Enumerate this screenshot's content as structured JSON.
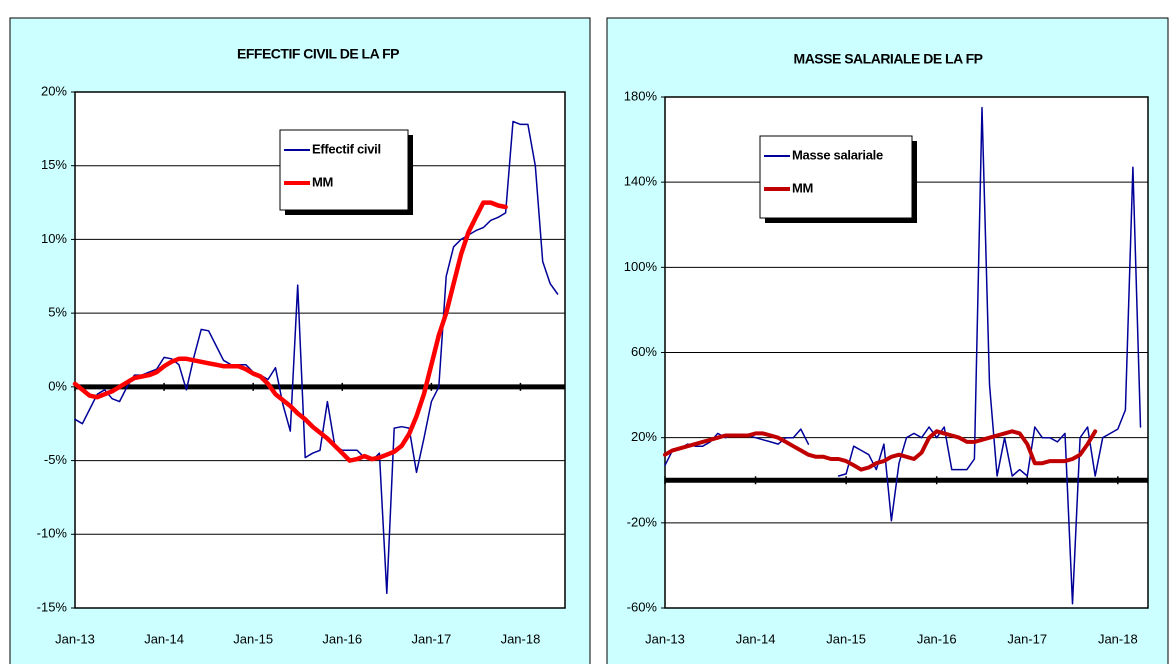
{
  "chart_data": [
    {
      "type": "line",
      "title": "EFFECTIF CIVIL DE LA FP",
      "categories": [
        "Jan-13",
        null,
        null,
        null,
        null,
        null,
        null,
        null,
        null,
        null,
        null,
        null,
        "Jan-14",
        null,
        null,
        null,
        null,
        null,
        null,
        null,
        null,
        null,
        null,
        null,
        "Jan-15",
        null,
        null,
        null,
        null,
        null,
        null,
        null,
        null,
        null,
        null,
        null,
        "Jan-16",
        null,
        null,
        null,
        null,
        null,
        null,
        null,
        null,
        null,
        null,
        null,
        "Jan-17",
        null,
        null,
        null,
        null,
        null,
        null,
        null,
        null,
        null,
        null,
        null,
        "Jan-18",
        null,
        null,
        null,
        null,
        null
      ],
      "series": [
        {
          "name": "Effectif civil",
          "color": "#000099",
          "values": [
            -2.2,
            -2.5,
            -1.5,
            -0.5,
            -0.2,
            -0.8,
            -1.0,
            0.0,
            0.8,
            0.8,
            1.0,
            1.2,
            2.0,
            1.9,
            1.5,
            -0.2,
            2.0,
            3.9,
            3.8,
            2.8,
            1.8,
            1.5,
            1.5,
            1.5,
            1.0,
            0.8,
            0.5,
            1.3,
            -1.2,
            -3.0,
            6.9,
            -4.8,
            -4.5,
            -4.3,
            -1.0,
            -4.0,
            -4.3,
            -4.3,
            -4.3,
            -4.8,
            -5.0,
            -4.5,
            -14.0,
            -2.8,
            -2.7,
            -2.8,
            -5.8,
            -3.5,
            -1.0,
            0.0,
            7.5,
            9.5,
            10.0,
            10.3,
            10.6,
            10.8,
            11.3,
            11.5,
            11.8,
            18.0,
            17.8,
            17.8,
            15.0,
            8.5,
            7.0,
            6.3
          ]
        },
        {
          "name": "MM",
          "color": "#ff0000",
          "values": [
            0.2,
            -0.2,
            -0.6,
            -0.7,
            -0.5,
            -0.3,
            0.0,
            0.3,
            0.6,
            0.7,
            0.8,
            1.0,
            1.4,
            1.7,
            1.9,
            1.9,
            1.8,
            1.7,
            1.6,
            1.5,
            1.4,
            1.4,
            1.4,
            1.2,
            0.9,
            0.7,
            0.2,
            -0.5,
            -0.9,
            -1.3,
            -1.8,
            -2.2,
            -2.7,
            -3.1,
            -3.5,
            -4.0,
            -4.5,
            -5.0,
            -4.9,
            -4.7,
            -4.9,
            -4.8,
            -4.6,
            -4.4,
            -4.0,
            -3.2,
            -2.0,
            -0.5,
            1.5,
            3.5,
            5.0,
            7.0,
            9.0,
            10.5,
            11.5,
            12.5,
            12.5,
            12.3,
            12.2,
            null,
            null,
            null,
            null,
            null,
            null,
            null
          ]
        }
      ],
      "ylim": [
        -15,
        20
      ],
      "yticks": [
        {
          "value": -15,
          "label": "-15%"
        },
        {
          "value": -10,
          "label": "-10%"
        },
        {
          "value": -5,
          "label": "-5%"
        },
        {
          "value": 0,
          "label": "0%"
        },
        {
          "value": 5,
          "label": "5%"
        },
        {
          "value": 10,
          "label": "10%"
        },
        {
          "value": 15,
          "label": "15%"
        },
        {
          "value": 20,
          "label": "20%"
        }
      ],
      "grid": true
    },
    {
      "type": "line",
      "title": "MASSE SALARIALE DE LA FP",
      "categories": [
        "Jan-13",
        null,
        null,
        null,
        null,
        null,
        null,
        null,
        null,
        null,
        null,
        null,
        "Jan-14",
        null,
        null,
        null,
        null,
        null,
        null,
        null,
        null,
        null,
        null,
        null,
        "Jan-15",
        null,
        null,
        null,
        null,
        null,
        null,
        null,
        null,
        null,
        null,
        null,
        "Jan-16",
        null,
        null,
        null,
        null,
        null,
        null,
        null,
        null,
        null,
        null,
        null,
        "Jan-17",
        null,
        null,
        null,
        null,
        null,
        null,
        null,
        null,
        null,
        null,
        null,
        "Jan-18",
        null,
        null,
        null
      ],
      "series": [
        {
          "name": "Masse salariale",
          "color": "#000099",
          "values": [
            7,
            14,
            15,
            17,
            16,
            16,
            18,
            22,
            20,
            21,
            21,
            21,
            20,
            19,
            18,
            17,
            20,
            20,
            24,
            17,
            null,
            null,
            null,
            2,
            3,
            16,
            14,
            12,
            5,
            17,
            -19,
            8,
            20,
            22,
            20,
            25,
            20,
            25,
            5,
            5,
            5,
            10,
            175,
            45,
            2,
            20,
            2,
            5,
            2,
            25,
            20,
            20,
            18,
            22,
            -58,
            20,
            25,
            2,
            20,
            22,
            24,
            33,
            147,
            25
          ]
        },
        {
          "name": "MM",
          "color": "#c00000",
          "values": [
            12,
            14,
            15,
            16,
            17,
            18,
            19,
            20,
            21,
            21,
            21,
            21,
            22,
            22,
            21,
            20,
            18,
            16,
            14,
            12,
            11,
            11,
            10,
            10,
            9,
            7,
            5,
            6,
            8,
            9,
            11,
            12,
            11,
            10,
            13,
            20,
            23,
            22,
            21,
            20,
            18,
            18,
            19,
            20,
            21,
            22,
            23,
            22,
            17,
            8,
            8,
            9,
            9,
            9,
            10,
            12,
            17,
            23,
            null,
            null,
            null,
            null,
            null,
            null
          ]
        }
      ],
      "ylim": [
        -60,
        180
      ],
      "yticks": [
        {
          "value": -60,
          "label": "-60%"
        },
        {
          "value": -20,
          "label": "-20%"
        },
        {
          "value": 20,
          "label": "20%"
        },
        {
          "value": 60,
          "label": "60%"
        },
        {
          "value": 100,
          "label": "100%"
        },
        {
          "value": 140,
          "label": "140%"
        },
        {
          "value": 180,
          "label": "180%"
        }
      ],
      "grid": true
    }
  ]
}
